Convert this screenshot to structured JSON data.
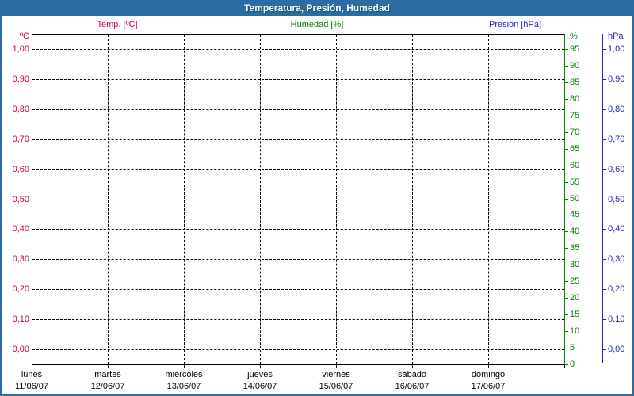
{
  "window": {
    "title": "Temperatura, Presión, Humedad"
  },
  "legend": {
    "items": [
      {
        "label": "Temp. [ºC]",
        "series": "temperature"
      },
      {
        "label": "Humedad [%]",
        "series": "humidity"
      },
      {
        "label": "Presión [hPa]",
        "series": "pressure"
      }
    ]
  },
  "colors": {
    "titlebar_bg": "#2b6ca3",
    "frame_border": "#2b6ca3",
    "temperature": "#cc0033",
    "humidity": "#008000",
    "pressure": "#2222cc",
    "gridline": "#000000",
    "axis_line": "#000000",
    "background": "#ffffff",
    "title_text": "#ffffff",
    "date_text": "#000000"
  },
  "chart_data": {
    "type": "line",
    "title": "Temperatura, Presión, Humedad",
    "grid": true,
    "legend_position": "top",
    "series": [
      {
        "name": "Temp. [ºC]",
        "unit": "ºC",
        "axis": "left",
        "color": "#cc0033",
        "values": []
      },
      {
        "name": "Humedad [%]",
        "unit": "%",
        "axis": "right_inner",
        "color": "#008000",
        "values": []
      },
      {
        "name": "Presión [hPa]",
        "unit": "hPa",
        "axis": "right_outer",
        "color": "#2222cc",
        "values": []
      }
    ],
    "axes": {
      "left": {
        "unit": "ºC",
        "series": "temperature",
        "min": 0.0,
        "max": 1.0,
        "tick_step": 0.1,
        "tick_labels": [
          "1,00",
          "0,90",
          "0,80",
          "0,70",
          "0,60",
          "0,50",
          "0,40",
          "0,30",
          "0,20",
          "0,10",
          "0,00"
        ]
      },
      "right_inner": {
        "unit": "%",
        "series": "humidity",
        "min": 0,
        "max": 95,
        "tick_step": 5,
        "tick_labels": [
          "95",
          "90",
          "85",
          "80",
          "75",
          "70",
          "65",
          "60",
          "55",
          "50",
          "45",
          "40",
          "35",
          "30",
          "25",
          "20",
          "15",
          "10",
          "5",
          "0"
        ]
      },
      "right_outer": {
        "unit": "hPa",
        "series": "pressure",
        "min": 0.0,
        "max": 1.0,
        "tick_step": 0.1,
        "tick_labels": [
          "1,00",
          "0,90",
          "0,80",
          "0,70",
          "0,60",
          "0,50",
          "0,40",
          "0,30",
          "0,20",
          "0,10",
          "0,00"
        ]
      }
    },
    "x_axis": {
      "days": [
        {
          "weekday": "lunes",
          "date": "11/06/07"
        },
        {
          "weekday": "martes",
          "date": "12/06/07"
        },
        {
          "weekday": "miércoles",
          "date": "13/06/07"
        },
        {
          "weekday": "jueves",
          "date": "14/06/07"
        },
        {
          "weekday": "viernes",
          "date": "15/06/07"
        },
        {
          "weekday": "sábado",
          "date": "16/06/07"
        },
        {
          "weekday": "domingo",
          "date": "17/06/07"
        }
      ]
    }
  }
}
